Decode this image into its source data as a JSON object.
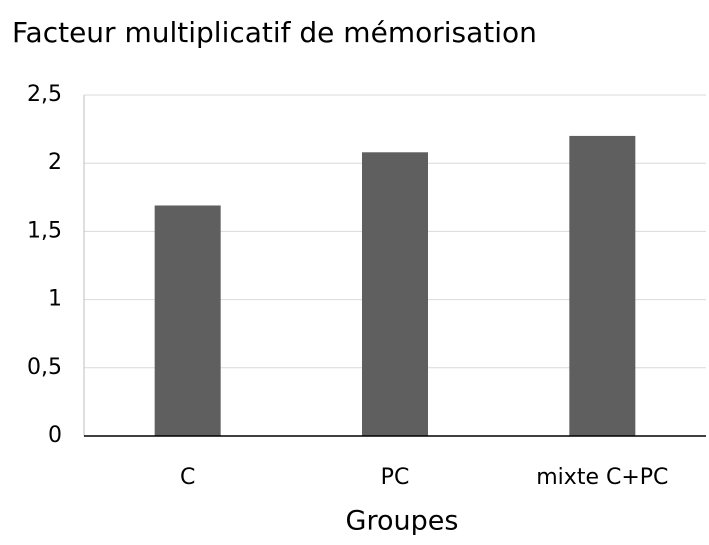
{
  "chart_data": {
    "type": "bar",
    "title": "Facteur multiplicatif de mémorisation",
    "x_label": "Groupes",
    "categories": [
      "C",
      "PC",
      "mixte C+PC"
    ],
    "values": [
      1.69,
      2.08,
      2.2
    ],
    "color": "#5f5f5f",
    "ylim": [
      0,
      2.5
    ],
    "yticks": [
      0,
      {
        "value": 0.5,
        "label": "0,5"
      },
      1,
      {
        "value": 1.5,
        "label": "1,5"
      },
      2,
      {
        "value": 2.5,
        "label": "2,5"
      }
    ],
    "grid": true
  }
}
